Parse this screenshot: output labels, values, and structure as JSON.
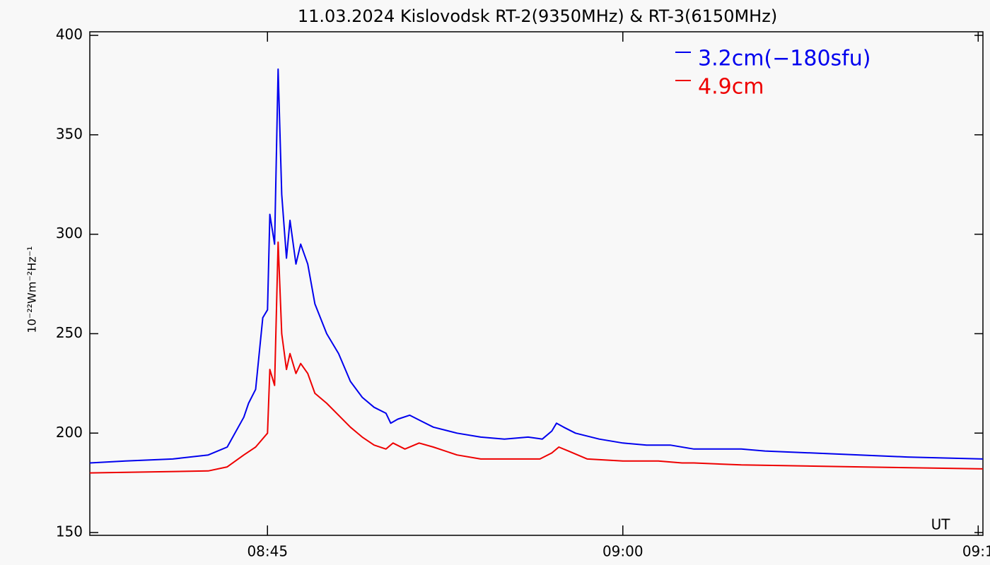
{
  "chart_data": {
    "type": "line",
    "title": "11.03.2024 Kislovodsk RT-2(9350MHz) & RT-3(6150MHz)",
    "ylabel": "10⁻²²Wm⁻²Hz⁻¹",
    "annotation": "UT",
    "legend": "upper right",
    "xlim": [
      517.5,
      555.2
    ],
    "xticks": [
      {
        "value": 525,
        "label": "08:45"
      },
      {
        "value": 540,
        "label": "09:00"
      },
      {
        "value": 555,
        "label": "09:1"
      }
    ],
    "ylim": [
      148.6,
      401.8
    ],
    "yticks": [
      150,
      200,
      250,
      300,
      350,
      400
    ],
    "series": [
      {
        "name": "3.2cm(−180sfu)",
        "color": "#0000ee",
        "x": [
          517.5,
          519,
          521,
          522.5,
          523.3,
          524.0,
          524.2,
          524.5,
          524.8,
          525.0,
          525.1,
          525.3,
          525.45,
          525.6,
          525.8,
          525.95,
          526.2,
          526.4,
          526.7,
          527.0,
          527.5,
          528.0,
          528.5,
          529.0,
          529.5,
          530.0,
          530.2,
          530.5,
          531.0,
          531.5,
          532.0,
          533.0,
          534.0,
          535.0,
          536.0,
          536.6,
          537.0,
          537.2,
          537.5,
          538.0,
          539.0,
          540.0,
          541.0,
          542.0,
          543.0,
          544.0,
          545.0,
          546.0,
          548.0,
          550.0,
          552.0,
          555.2
        ],
        "values": [
          185,
          186,
          187,
          189,
          193,
          208,
          215,
          222,
          258,
          262,
          310,
          295,
          383,
          320,
          288,
          307,
          285,
          295,
          285,
          265,
          250,
          240,
          226,
          218,
          213,
          210,
          205,
          207,
          209,
          206,
          203,
          200,
          198,
          197,
          198,
          197,
          201,
          205,
          203,
          200,
          197,
          195,
          194,
          194,
          192,
          192,
          192,
          191,
          190,
          189,
          188,
          187
        ]
      },
      {
        "name": "4.9cm",
        "color": "#ee0000",
        "x": [
          517.5,
          522.5,
          523.3,
          524.0,
          524.5,
          525.0,
          525.1,
          525.3,
          525.45,
          525.6,
          525.8,
          525.95,
          526.2,
          526.4,
          526.7,
          527.0,
          527.5,
          528.0,
          528.5,
          529.0,
          529.5,
          530.0,
          530.3,
          530.8,
          531.4,
          532.0,
          533.0,
          534.0,
          535.0,
          536.0,
          536.5,
          537.0,
          537.3,
          537.7,
          538.5,
          540.0,
          541.5,
          542.5,
          543.0,
          545.0,
          550.0,
          555.2
        ],
        "values": [
          180,
          181,
          183,
          189,
          193,
          200,
          232,
          224,
          296,
          250,
          232,
          240,
          230,
          235,
          230,
          220,
          215,
          209,
          203,
          198,
          194,
          192,
          195,
          192,
          195,
          193,
          189,
          187,
          187,
          187,
          187,
          190,
          193,
          191,
          187,
          186,
          186,
          185,
          185,
          184,
          183,
          182
        ]
      }
    ]
  }
}
